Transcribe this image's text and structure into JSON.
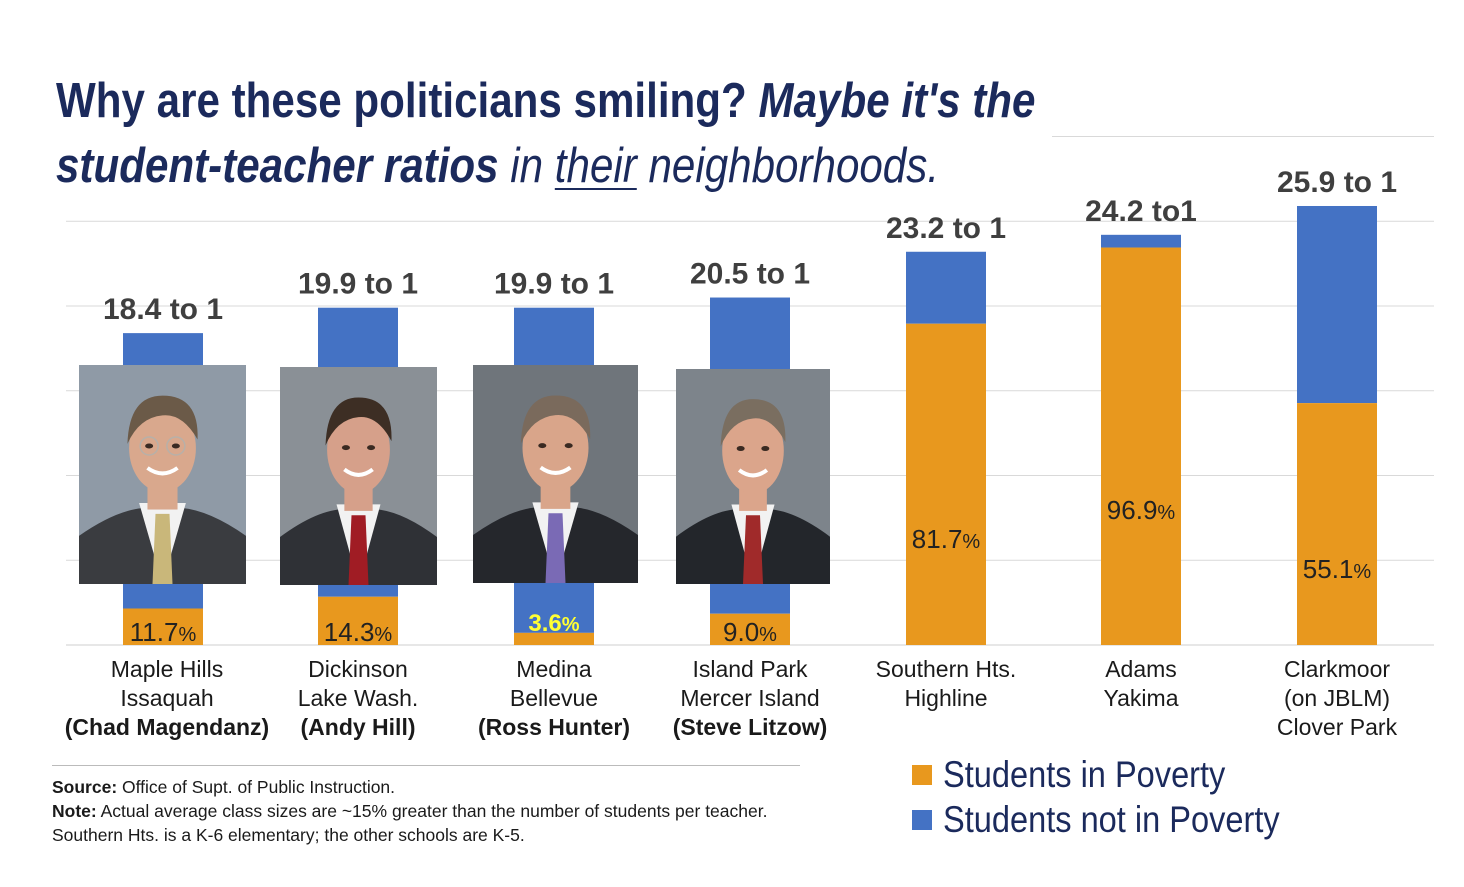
{
  "title": {
    "line1_plain": "Why are these politicians smiling? ",
    "line1_italic": "Maybe it's the",
    "line2_bold": "student-teacher ratios",
    "line2_in": " in ",
    "line2_underline": "their",
    "line2_end": " neighborhoods."
  },
  "chart_data": {
    "type": "bar",
    "stacked": true,
    "title": "",
    "xlabel": "",
    "ylabel": "",
    "grid": true,
    "ylim": [
      0,
      30
    ],
    "categories": [
      [
        "Maple Hills",
        "Issaquah",
        "(Chad Magendanz)"
      ],
      [
        "Dickinson",
        "Lake Wash.",
        "(Andy Hill)"
      ],
      [
        "Medina",
        "Bellevue",
        "(Ross Hunter)"
      ],
      [
        "Island Park",
        "Mercer Island",
        "(Steve Litzow)"
      ],
      [
        "Southern Hts.",
        "Highline"
      ],
      [
        "Adams",
        "Yakima"
      ],
      [
        "Clarkmoor",
        "(on JBLM)",
        "Clover Park"
      ]
    ],
    "totals": [
      18.4,
      19.9,
      19.9,
      20.5,
      23.2,
      24.2,
      25.9
    ],
    "ratio_labels": [
      "18.4 to 1",
      "19.9 to 1",
      "19.9 to 1",
      "20.5 to 1",
      "23.2 to 1",
      "24.2 to1",
      "25.9 to 1"
    ],
    "poverty_pct": [
      11.7,
      14.3,
      3.6,
      9.0,
      81.7,
      96.9,
      55.1
    ],
    "poverty_labels": [
      "11.7",
      "14.3",
      "3.6",
      "9.0",
      "81.7",
      "96.9",
      "55.1"
    ],
    "series": [
      {
        "name": "Students in Poverty",
        "color": "#e8981e"
      },
      {
        "name": "Students not in Poverty",
        "color": "#4472c4"
      }
    ],
    "highlight_label_color": "#ffff33",
    "legend_position": "bottom-right"
  },
  "photos": [
    {
      "person": "Chad Magendanz",
      "bg": "#8f9aa6",
      "suit": "#3a3c40",
      "tie": "#c9b77a",
      "skin": "#d9a88d",
      "hair": "#6b5a48"
    },
    {
      "person": "Andy Hill",
      "bg": "#8a9096",
      "suit": "#2f3136",
      "tie": "#a01c24",
      "skin": "#d6a08a",
      "hair": "#3d2e24"
    },
    {
      "person": "Ross Hunter",
      "bg": "#6f757b",
      "suit": "#25272c",
      "tie": "#7a6ab5",
      "skin": "#d9a58a",
      "hair": "#7a6a5c"
    },
    {
      "person": "Steve Litzow",
      "bg": "#7d848b",
      "suit": "#23262b",
      "tie": "#a02a2a",
      "skin": "#dba58b",
      "hair": "#7a6e60"
    }
  ],
  "source": {
    "source_label": "Source:",
    "source_text": " Office of Supt. of Public Instruction.",
    "note_label": "Note:",
    "note_text": " Actual average class  sizes are ~15% greater than the number of students per teacher. Southern Hts. is a K-6 elementary; the other schools are K-5."
  },
  "percent_sign": "%"
}
